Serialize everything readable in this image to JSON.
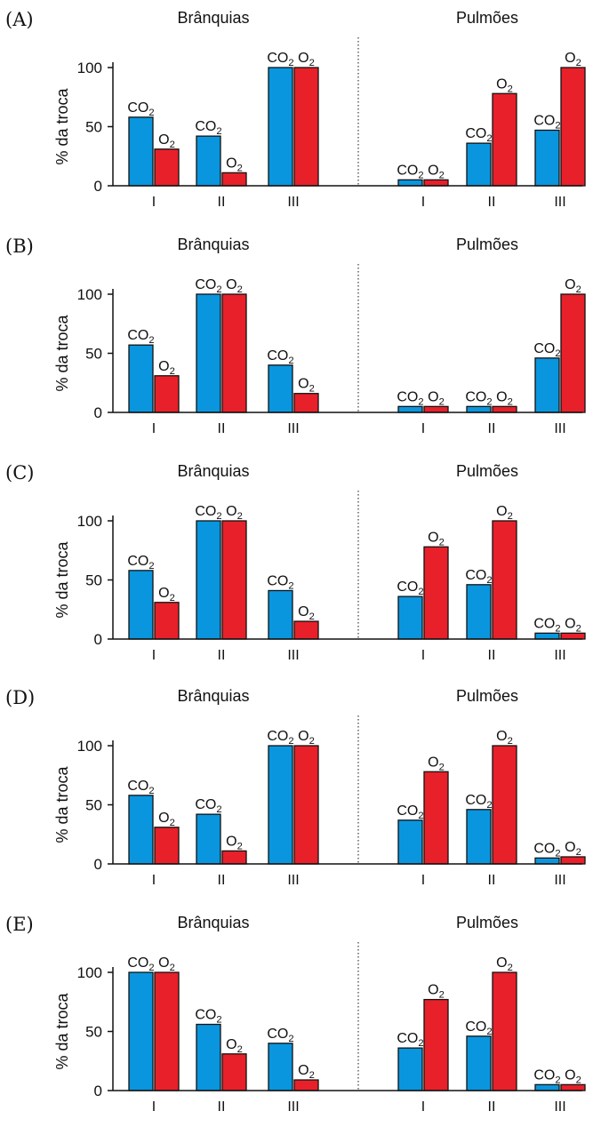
{
  "colors": {
    "co2": "#0a96de",
    "o2": "#e8202a",
    "stroke": "#111111"
  },
  "chart_data": [
    {
      "type": "bar",
      "label": "(A)",
      "ylabel": "% da troca",
      "yticks": [
        0,
        50,
        100
      ],
      "ylim": [
        0,
        100
      ],
      "groups": [
        {
          "name": "Brânquias",
          "categories": [
            "I",
            "II",
            "III"
          ],
          "series": [
            {
              "name": "CO2",
              "values": [
                58,
                42,
                100
              ]
            },
            {
              "name": "O2",
              "values": [
                31,
                11,
                100
              ]
            }
          ]
        },
        {
          "name": "Pulmões",
          "categories": [
            "I",
            "II",
            "III"
          ],
          "series": [
            {
              "name": "CO2",
              "values": [
                5,
                36,
                47
              ]
            },
            {
              "name": "O2",
              "values": [
                5,
                78,
                100
              ]
            }
          ]
        }
      ]
    },
    {
      "type": "bar",
      "label": "(B)",
      "ylabel": "% da troca",
      "yticks": [
        0,
        50,
        100
      ],
      "ylim": [
        0,
        100
      ],
      "groups": [
        {
          "name": "Brânquias",
          "categories": [
            "I",
            "II",
            "III"
          ],
          "series": [
            {
              "name": "CO2",
              "values": [
                57,
                100,
                40
              ]
            },
            {
              "name": "O2",
              "values": [
                31,
                100,
                16
              ]
            }
          ]
        },
        {
          "name": "Pulmões",
          "categories": [
            "I",
            "II",
            "III"
          ],
          "series": [
            {
              "name": "CO2",
              "values": [
                5,
                5,
                46
              ]
            },
            {
              "name": "O2",
              "values": [
                5,
                5,
                100
              ]
            }
          ]
        }
      ]
    },
    {
      "type": "bar",
      "label": "(C)",
      "ylabel": "% da troca",
      "yticks": [
        0,
        50,
        100
      ],
      "ylim": [
        0,
        100
      ],
      "groups": [
        {
          "name": "Brânquias",
          "categories": [
            "I",
            "II",
            "III"
          ],
          "series": [
            {
              "name": "CO2",
              "values": [
                58,
                100,
                41
              ]
            },
            {
              "name": "O2",
              "values": [
                31,
                100,
                15
              ]
            }
          ]
        },
        {
          "name": "Pulmões",
          "categories": [
            "I",
            "II",
            "III"
          ],
          "series": [
            {
              "name": "CO2",
              "values": [
                36,
                46,
                5
              ]
            },
            {
              "name": "O2",
              "values": [
                78,
                100,
                5
              ]
            }
          ]
        }
      ]
    },
    {
      "type": "bar",
      "label": "(D)",
      "ylabel": "% da troca",
      "yticks": [
        0,
        50,
        100
      ],
      "ylim": [
        0,
        100
      ],
      "groups": [
        {
          "name": "Brânquias",
          "categories": [
            "I",
            "II",
            "III"
          ],
          "series": [
            {
              "name": "CO2",
              "values": [
                58,
                42,
                100
              ]
            },
            {
              "name": "O2",
              "values": [
                31,
                11,
                100
              ]
            }
          ]
        },
        {
          "name": "Pulmões",
          "categories": [
            "I",
            "II",
            "III"
          ],
          "series": [
            {
              "name": "CO2",
              "values": [
                37,
                46,
                5
              ]
            },
            {
              "name": "O2",
              "values": [
                78,
                100,
                6
              ]
            }
          ]
        }
      ]
    },
    {
      "type": "bar",
      "label": "(E)",
      "ylabel": "% da troca",
      "yticks": [
        0,
        50,
        100
      ],
      "ylim": [
        0,
        100
      ],
      "groups": [
        {
          "name": "Brânquias",
          "categories": [
            "I",
            "II",
            "III"
          ],
          "series": [
            {
              "name": "CO2",
              "values": [
                100,
                56,
                40
              ]
            },
            {
              "name": "O2",
              "values": [
                100,
                31,
                9
              ]
            }
          ]
        },
        {
          "name": "Pulmões",
          "categories": [
            "I",
            "II",
            "III"
          ],
          "series": [
            {
              "name": "CO2",
              "values": [
                36,
                46,
                5
              ]
            },
            {
              "name": "O2",
              "values": [
                77,
                100,
                5
              ]
            }
          ]
        }
      ]
    }
  ]
}
